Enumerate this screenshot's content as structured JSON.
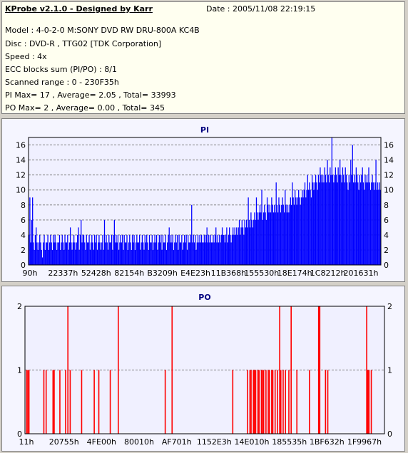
{
  "info": {
    "title": "KProbe v2.1.0 - Designed by Karr",
    "date": "Date : 2005/11/08 22:19:15",
    "lines": [
      "Model : 4-0-2-0 M:SONY     DVD RW DRU-800A  KC4B",
      "Disc : DVD-R , TTG02 [TDK Corporation]",
      "Speed : 4x",
      "ECC blocks sum (PI/PO) : 8/1",
      "Scanned range : 0 - 230F35h",
      "PI Max= 17 , Average= 2.05 , Total= 33993",
      "PO Max= 2 , Average= 0.00 , Total= 345"
    ]
  },
  "chart_data": [
    {
      "type": "bar",
      "title": "PI",
      "color": "#0000ff",
      "ylim": [
        0,
        17
      ],
      "yticks": [
        0,
        2,
        4,
        6,
        8,
        10,
        12,
        14,
        16
      ],
      "xtick_labels": [
        "90h",
        "22337h",
        "52428h",
        "82154h",
        "B3209h",
        "E4E23h",
        "11B368h",
        "155530h",
        "18E174h",
        "1C8212h",
        "201631h"
      ],
      "grid": true,
      "values": [
        4,
        9,
        3,
        6,
        9,
        3,
        2,
        4,
        5,
        3,
        2,
        3,
        4,
        3,
        2,
        1,
        3,
        4,
        2,
        3,
        3,
        4,
        2,
        3,
        4,
        3,
        2,
        4,
        3,
        4,
        3,
        2,
        3,
        3,
        4,
        2,
        3,
        4,
        3,
        2,
        4,
        3,
        3,
        4,
        2,
        3,
        5,
        3,
        2,
        3,
        4,
        3,
        2,
        3,
        4,
        5,
        2,
        4,
        6,
        3,
        4,
        4,
        3,
        2,
        4,
        3,
        3,
        4,
        2,
        3,
        4,
        3,
        2,
        4,
        3,
        4,
        2,
        3,
        4,
        3,
        2,
        3,
        4,
        2,
        6,
        3,
        4,
        3,
        2,
        4,
        3,
        3,
        4,
        2,
        4,
        6,
        3,
        4,
        3,
        4,
        2,
        3,
        4,
        3,
        4,
        2,
        4,
        3,
        3,
        4,
        2,
        3,
        4,
        3,
        2,
        4,
        3,
        4,
        2,
        3,
        4,
        3,
        3,
        4,
        2,
        3,
        4,
        3,
        2,
        4,
        3,
        4,
        3,
        2,
        4,
        3,
        3,
        4,
        2,
        3,
        4,
        3,
        4,
        2,
        3,
        4,
        3,
        4,
        2,
        4,
        3,
        3,
        4,
        2,
        3,
        4,
        5,
        3,
        4,
        3,
        4,
        2,
        3,
        4,
        3,
        4,
        2,
        4,
        3,
        3,
        4,
        2,
        3,
        4,
        3,
        4,
        2,
        4,
        3,
        3,
        4,
        8,
        3,
        4,
        3,
        4,
        2,
        3,
        4,
        3,
        4,
        3,
        4,
        3,
        3,
        4,
        3,
        4,
        5,
        3,
        4,
        3,
        4,
        3,
        3,
        4,
        3,
        4,
        5,
        3,
        4,
        3,
        4,
        3,
        4,
        5,
        4,
        4,
        3,
        4,
        5,
        3,
        4,
        5,
        4,
        3,
        4,
        5,
        4,
        5,
        4,
        5,
        4,
        5,
        6,
        4,
        5,
        6,
        5,
        4,
        6,
        5,
        6,
        5,
        9,
        6,
        5,
        7,
        6,
        5,
        6,
        7,
        6,
        9,
        7,
        6,
        7,
        8,
        7,
        10,
        6,
        7,
        8,
        7,
        6,
        9,
        8,
        7,
        8,
        7,
        9,
        8,
        7,
        8,
        7,
        11,
        8,
        7,
        9,
        8,
        7,
        8,
        9,
        8,
        7,
        10,
        8,
        7,
        8,
        7,
        8,
        9,
        8,
        11,
        9,
        8,
        10,
        9,
        8,
        9,
        10,
        9,
        8,
        9,
        10,
        9,
        10,
        11,
        9,
        10,
        12,
        10,
        11,
        10,
        9,
        12,
        11,
        10,
        11,
        12,
        11,
        10,
        12,
        11,
        13,
        12,
        11,
        12,
        11,
        13,
        12,
        11,
        14,
        12,
        11,
        13,
        12,
        17,
        12,
        11,
        12,
        13,
        12,
        11,
        13,
        12,
        14,
        12,
        11,
        13,
        12,
        11,
        13,
        12,
        11,
        10,
        12,
        11,
        14,
        12,
        16,
        11,
        12,
        11,
        13,
        12,
        11,
        10,
        12,
        11,
        12,
        13,
        11,
        10,
        12,
        11,
        12,
        11,
        13,
        11,
        10,
        11,
        12,
        11,
        10,
        11,
        14,
        10,
        11,
        10,
        11,
        10
      ]
    },
    {
      "type": "bar",
      "title": "PO",
      "color": "#ff0000",
      "ylim": [
        0,
        2
      ],
      "yticks": [
        0,
        1,
        2
      ],
      "xtick_labels": [
        "11h",
        "20755h",
        "4FE00h",
        "80010h",
        "AF701h",
        "1152E3h",
        "14E010h",
        "185535h",
        "1BF632h",
        "1F9967h"
      ],
      "grid": true,
      "values": [
        0,
        1,
        1,
        1,
        0,
        0,
        0,
        0,
        0,
        0,
        0,
        0,
        0,
        0,
        0,
        0,
        1,
        0,
        1,
        0,
        0,
        0,
        0,
        0,
        1,
        1,
        0,
        0,
        0,
        0,
        1,
        0,
        0,
        0,
        0,
        1,
        0,
        2,
        0,
        1,
        0,
        0,
        0,
        0,
        0,
        0,
        0,
        0,
        0,
        1,
        0,
        0,
        0,
        0,
        0,
        0,
        0,
        0,
        0,
        0,
        1,
        0,
        0,
        0,
        1,
        0,
        0,
        0,
        0,
        0,
        0,
        0,
        0,
        0,
        1,
        0,
        0,
        0,
        0,
        0,
        0,
        2,
        0,
        0,
        0,
        0,
        0,
        0,
        0,
        0,
        0,
        0,
        0,
        0,
        0,
        0,
        0,
        0,
        0,
        0,
        0,
        0,
        0,
        0,
        0,
        0,
        0,
        0,
        0,
        0,
        0,
        0,
        0,
        0,
        0,
        0,
        0,
        0,
        0,
        0,
        0,
        0,
        1,
        0,
        0,
        0,
        0,
        0,
        2,
        0,
        0,
        0,
        0,
        0,
        0,
        0,
        0,
        0,
        0,
        0,
        0,
        0,
        0,
        0,
        0,
        0,
        0,
        0,
        0,
        0,
        0,
        0,
        0,
        0,
        0,
        0,
        0,
        0,
        0,
        0,
        0,
        0,
        0,
        0,
        0,
        0,
        0,
        0,
        0,
        0,
        0,
        0,
        0,
        0,
        0,
        0,
        0,
        0,
        0,
        0,
        0,
        1,
        0,
        0,
        0,
        0,
        0,
        0,
        0,
        0,
        0,
        0,
        0,
        0,
        1,
        0,
        1,
        1,
        0,
        1,
        1,
        1,
        0,
        1,
        1,
        0,
        1,
        1,
        1,
        0,
        1,
        0,
        1,
        1,
        0,
        1,
        1,
        0,
        1,
        0,
        1,
        0,
        2,
        1,
        0,
        1,
        0,
        1,
        0,
        0,
        1,
        0,
        2,
        0,
        0,
        0,
        0,
        1,
        0,
        0,
        0,
        0,
        0,
        0,
        0,
        0,
        0,
        0,
        1,
        0,
        0,
        0,
        0,
        0,
        0,
        0,
        2,
        2,
        0,
        0,
        0,
        0,
        1,
        0,
        1,
        0,
        0,
        0,
        0,
        0,
        0,
        0,
        0,
        0,
        0,
        0,
        0,
        0,
        0,
        0,
        0,
        0,
        0,
        0,
        0,
        0,
        0,
        0,
        0,
        0,
        0,
        0,
        0,
        0,
        0,
        0,
        0,
        0,
        2,
        1,
        1,
        0,
        1,
        0,
        0,
        0,
        0,
        0,
        0,
        0,
        0,
        0,
        0,
        0
      ]
    }
  ]
}
